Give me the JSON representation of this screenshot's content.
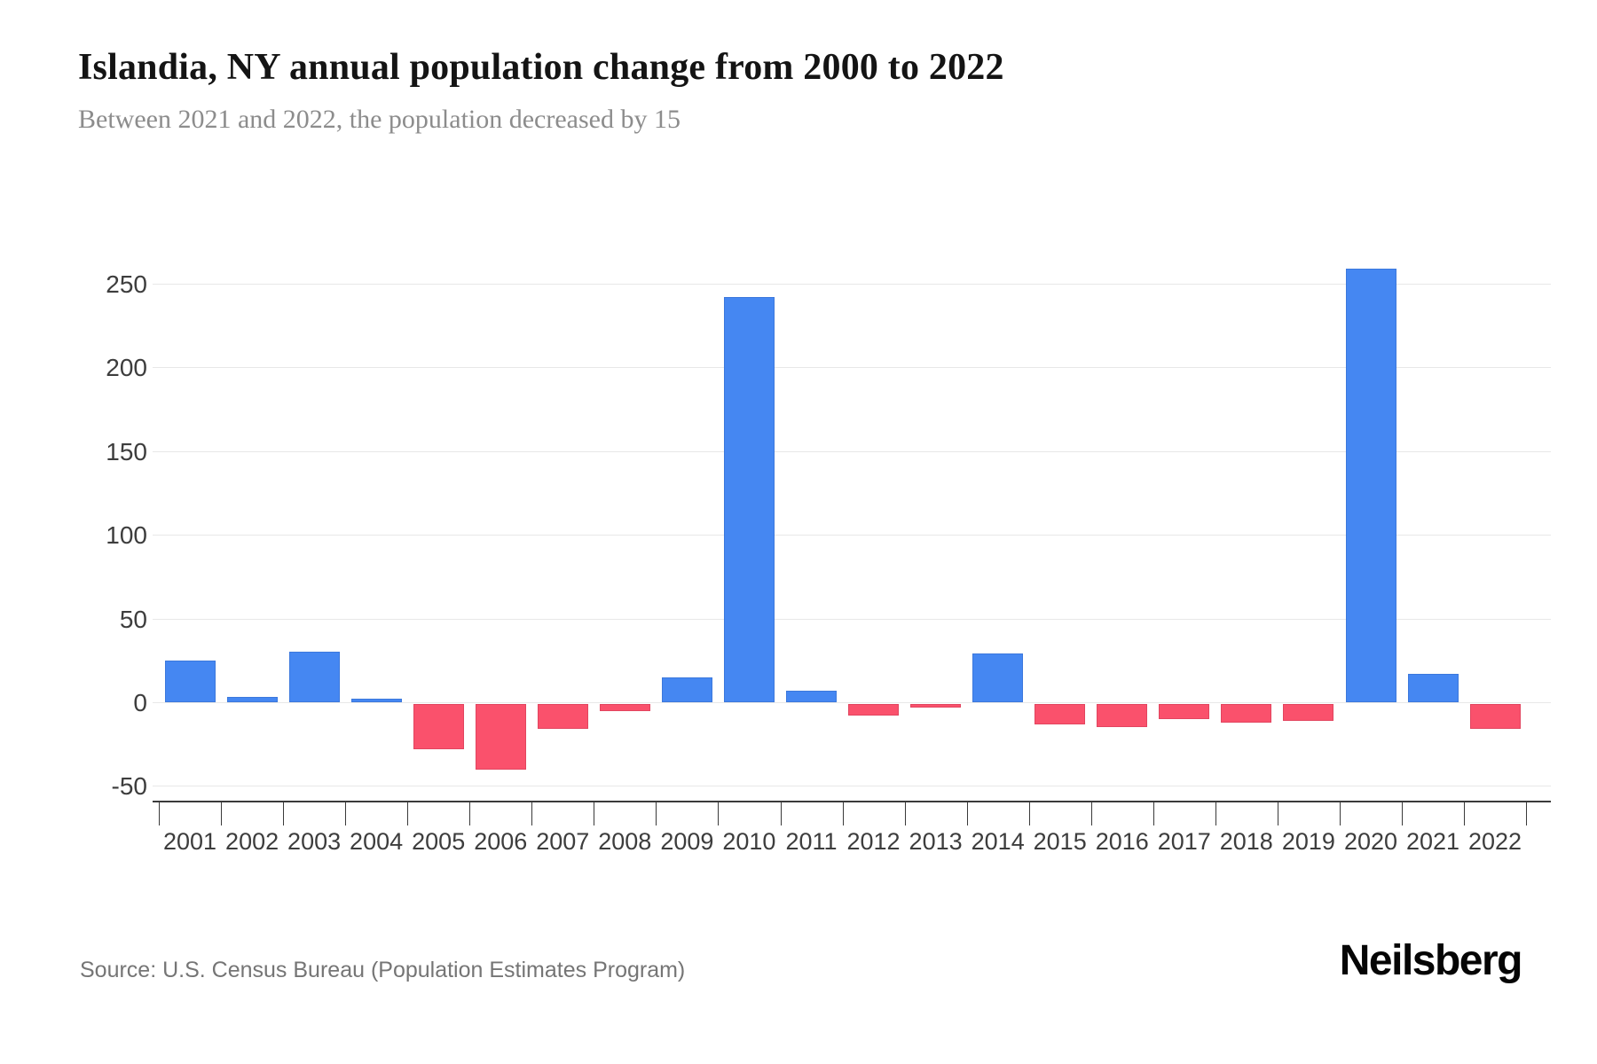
{
  "header": {
    "title": "Islandia, NY annual population change from 2000 to 2022",
    "subtitle": "Between 2021 and 2022, the population decreased by 15"
  },
  "footer": {
    "source": "Source: U.S. Census Bureau (Population Estimates Program)",
    "brand": "Neilsberg"
  },
  "chart_data": {
    "type": "bar",
    "title": "Islandia, NY annual population change from 2000 to 2022",
    "subtitle": "Between 2021 and 2022, the population decreased by 15",
    "categories": [
      "2001",
      "2002",
      "2003",
      "2004",
      "2005",
      "2006",
      "2007",
      "2008",
      "2009",
      "2010",
      "2011",
      "2012",
      "2013",
      "2014",
      "2015",
      "2016",
      "2017",
      "2018",
      "2019",
      "2020",
      "2021",
      "2022"
    ],
    "values": [
      25,
      3,
      30,
      2,
      -27,
      -39,
      -15,
      -4,
      15,
      242,
      7,
      -7,
      -2,
      29,
      -12,
      -14,
      -9,
      -11,
      -10,
      259,
      17,
      -15
    ],
    "xlabel": "",
    "ylabel": "",
    "ylim": [
      -50,
      250
    ],
    "yticks": [
      250,
      200,
      150,
      100,
      50,
      0,
      -50
    ],
    "grid": true,
    "legend": false,
    "colors": {
      "positive": "#4587f2",
      "negative": "#fa516c"
    }
  }
}
